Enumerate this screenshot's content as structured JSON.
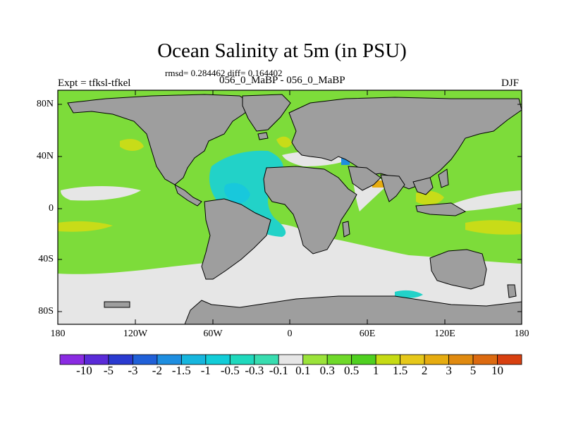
{
  "title": "Ocean Salinity at 5m (in PSU)",
  "stats_line": "rmsd= 0.284462 diff= 0.164402",
  "experiment": "Expt = tfksl-tfkel",
  "runs": "056_0_MaBP - 056_0_MaBP",
  "season": "DJF",
  "lat_labels": [
    "80N",
    "40N",
    "0",
    "40S",
    "80S"
  ],
  "lon_labels": [
    "180",
    "120W",
    "60W",
    "0",
    "60E",
    "120E",
    "180"
  ],
  "colorbar": {
    "labels": [
      "-10",
      "-5",
      "-3",
      "-2",
      "-1.5",
      "-1",
      "-0.5",
      "-0.3",
      "-0.1",
      "0.1",
      "0.3",
      "0.5",
      "1",
      "1.5",
      "2",
      "3",
      "5",
      "10"
    ],
    "colors": [
      "#8a2be2",
      "#5a2bd8",
      "#2a3ad0",
      "#2060d8",
      "#1e8ee0",
      "#16b6de",
      "#12cdd8",
      "#1fd9bd",
      "#38ddb0",
      "#e6e6e6",
      "#9be33a",
      "#6fd92a",
      "#4fd020",
      "#c6db14",
      "#e6c81a",
      "#e6ac10",
      "#e08a10",
      "#dc6a10",
      "#d84010"
    ]
  },
  "colors": {
    "land": "#9e9e9e",
    "near_zero": "#e6e6e6",
    "background_field": "#7ddc3a",
    "fresher": "#22d2c8",
    "saltier": "#c8dc18"
  }
}
